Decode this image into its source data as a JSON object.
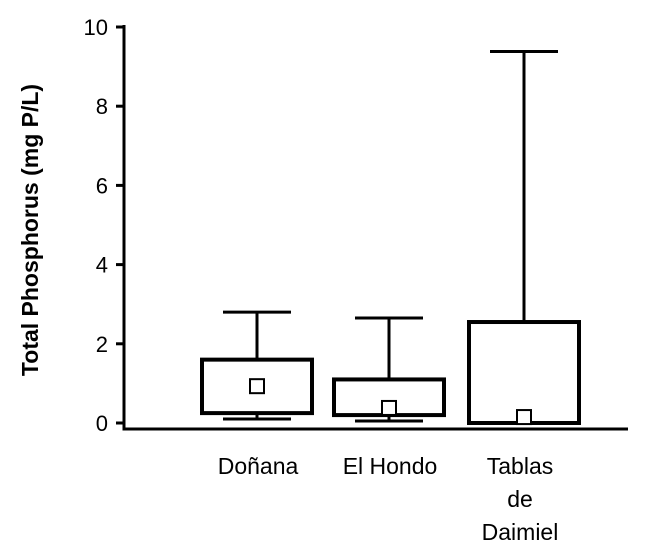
{
  "chart_data": {
    "type": "boxplot",
    "title": "",
    "xlabel": "",
    "ylabel": "Total Phosphorus (mg P/L)",
    "ylim": [
      0,
      10
    ],
    "yticks": [
      "0",
      "2",
      "4",
      "6",
      "8",
      "10"
    ],
    "grid": false,
    "categories": [
      {
        "lines": [
          "Doñana"
        ]
      },
      {
        "lines": [
          "El Hondo"
        ]
      },
      {
        "lines": [
          "Tablas",
          "de",
          "Daimiel"
        ]
      }
    ],
    "boxes": [
      {
        "whisker_low": 0.1,
        "q1": 0.25,
        "mean": 0.93,
        "q3": 1.6,
        "whisker_high": 2.8
      },
      {
        "whisker_low": 0.05,
        "q1": 0.2,
        "mean": 0.38,
        "q3": 1.1,
        "whisker_high": 2.65
      },
      {
        "whisker_low": 0.0,
        "q1": 0.0,
        "mean": 0.15,
        "q3": 2.55,
        "whisker_high": 9.38
      }
    ]
  }
}
